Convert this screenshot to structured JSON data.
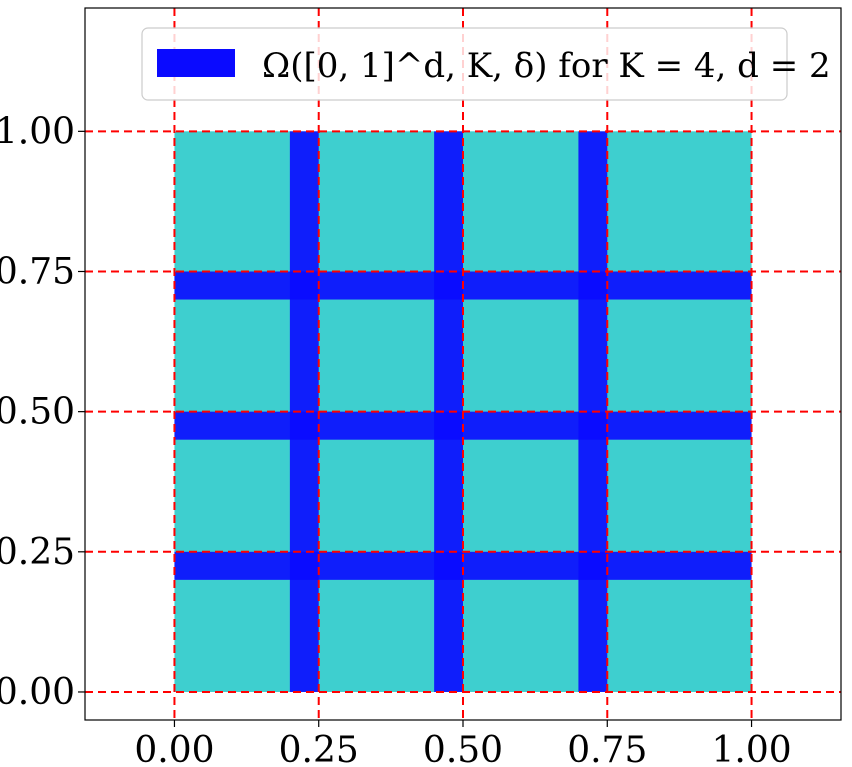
{
  "chart_data": {
    "type": "area",
    "title": "",
    "xlabel": "",
    "ylabel": "",
    "xlim": [
      -0.155,
      1.155
    ],
    "ylim": [
      -0.05,
      1.22
    ],
    "x_ticks": [
      0.0,
      0.25,
      0.5,
      0.75,
      1.0
    ],
    "y_ticks": [
      0.0,
      0.25,
      0.5,
      0.75,
      1.0
    ],
    "x_tick_labels": [
      "0.00",
      "0.25",
      "0.50",
      "0.75",
      "1.00"
    ],
    "y_tick_labels": [
      "0.00",
      "0.25",
      "0.50",
      "0.75",
      "1.00"
    ],
    "K": 4,
    "d": 2,
    "delta": 0.05,
    "background_region": {
      "x": [
        0.0,
        1.0
      ],
      "y": [
        0.0,
        1.0
      ]
    },
    "bands": [
      {
        "axis": "x",
        "from": 0.2,
        "to": 0.25
      },
      {
        "axis": "x",
        "from": 0.45,
        "to": 0.5
      },
      {
        "axis": "x",
        "from": 0.7,
        "to": 0.75
      },
      {
        "axis": "y",
        "from": 0.2,
        "to": 0.25
      },
      {
        "axis": "y",
        "from": 0.45,
        "to": 0.5
      },
      {
        "axis": "y",
        "from": 0.7,
        "to": 0.75
      }
    ],
    "dashed_lines": {
      "vertical": [
        0.0,
        0.25,
        0.5,
        0.75,
        1.0
      ],
      "horizontal": [
        0.0,
        0.25,
        0.5,
        0.75,
        1.0
      ]
    },
    "legend": {
      "placement": "top-center",
      "label": "Ω([0, 1]^d, K, δ) for K = 4, d = 2"
    },
    "grid": false,
    "colors": {
      "region": "#3ecfcf",
      "band": "#0a0aff",
      "dashed": "#ff0000",
      "axes": "#000000"
    }
  }
}
